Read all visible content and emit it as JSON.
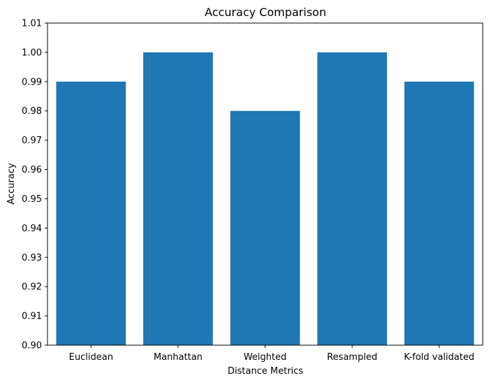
{
  "chart_data": {
    "type": "bar",
    "title": "Accuracy Comparison",
    "xlabel": "Distance Metrics",
    "ylabel": "Accuracy",
    "categories": [
      "Euclidean",
      "Manhattan",
      "Weighted",
      "Resampled",
      "K-fold validated"
    ],
    "values": [
      0.99,
      1.0,
      0.98,
      1.0,
      0.99
    ],
    "ylim": [
      0.9,
      1.01
    ],
    "yticks": [
      "0.90",
      "0.91",
      "0.92",
      "0.93",
      "0.94",
      "0.95",
      "0.96",
      "0.97",
      "0.98",
      "0.99",
      "1.00",
      "1.01"
    ],
    "grid": false,
    "bar_color": "#1f77b4"
  }
}
